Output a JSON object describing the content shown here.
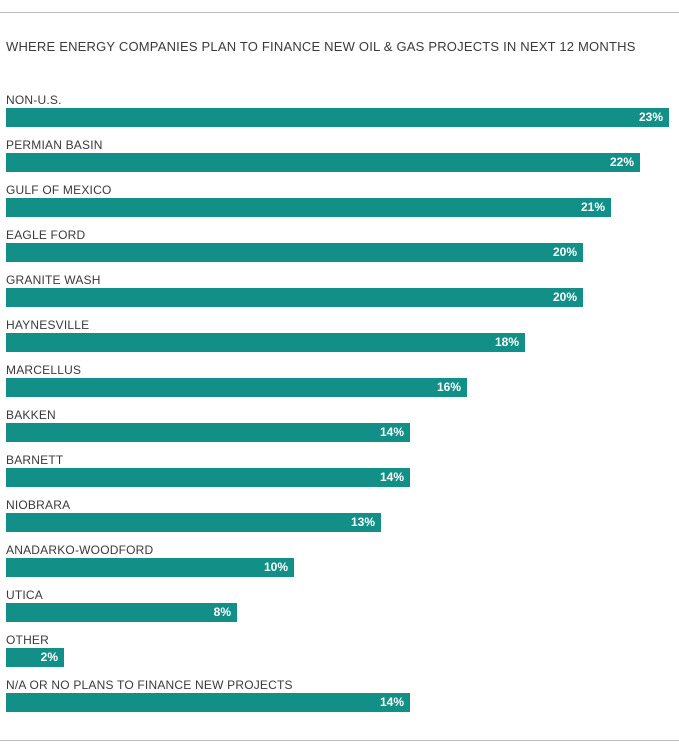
{
  "title": "WHERE ENERGY COMPANIES PLAN TO FINANCE NEW OIL & GAS PROJECTS IN NEXT 12 MONTHS",
  "colors": {
    "bar": "#128f86",
    "bar_text": "#ffffff",
    "label": "#3a3a3a",
    "rule": "#bdbdbd"
  },
  "chart_data": {
    "type": "bar",
    "orientation": "horizontal",
    "title": "WHERE ENERGY COMPANIES PLAN TO FINANCE NEW OIL & GAS PROJECTS IN NEXT 12 MONTHS",
    "categories": [
      "NON-U.S.",
      "PERMIAN BASIN",
      "GULF OF MEXICO",
      "EAGLE FORD",
      "GRANITE WASH",
      "HAYNESVILLE",
      "MARCELLUS",
      "BAKKEN",
      "BARNETT",
      "NIOBRARA",
      "ANADARKO-WOODFORD",
      "UTICA",
      "OTHER",
      "N/A OR NO PLANS TO FINANCE NEW PROJECTS"
    ],
    "values": [
      23,
      22,
      21,
      20,
      20,
      18,
      16,
      14,
      14,
      13,
      10,
      8,
      2,
      14
    ],
    "value_labels": [
      "23%",
      "22%",
      "21%",
      "20%",
      "20%",
      "18%",
      "16%",
      "14%",
      "14%",
      "13%",
      "10%",
      "8%",
      "2%",
      "14%"
    ],
    "xlim": [
      0,
      23
    ],
    "grid": false,
    "legend": "none"
  }
}
